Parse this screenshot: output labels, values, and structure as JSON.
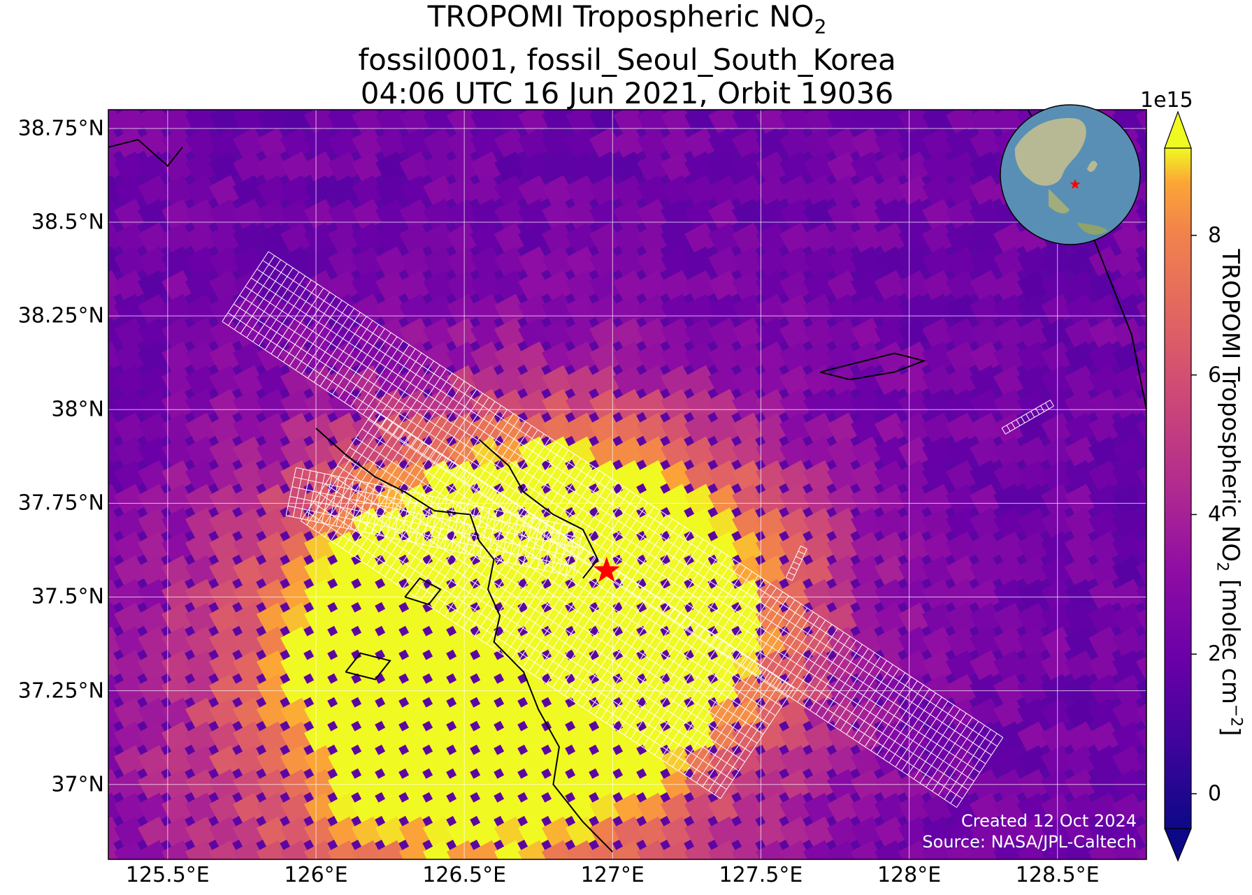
{
  "title": {
    "line1_prefix": "TROPOMI Tropospheric NO",
    "line1_sub": "2",
    "line2": "fossil0001, fossil_Seoul_South_Korea",
    "line3": "04:06 UTC 16 Jun 2021, Orbit 19036"
  },
  "map": {
    "lon_range": [
      125.3,
      128.8
    ],
    "lat_range": [
      36.8,
      38.8
    ],
    "lat_ticks": [
      "38.75°N",
      "38.5°N",
      "38.25°N",
      "38°N",
      "37.75°N",
      "37.5°N",
      "37.25°N",
      "37°N"
    ],
    "lat_tick_values": [
      38.75,
      38.5,
      38.25,
      38.0,
      37.75,
      37.5,
      37.25,
      37.0
    ],
    "lon_ticks": [
      "125.5°E",
      "126°E",
      "126.5°E",
      "127°E",
      "127.5°E",
      "128°E",
      "128.5°E"
    ],
    "lon_tick_values": [
      125.5,
      126.0,
      126.5,
      127.0,
      127.5,
      128.0,
      128.5
    ],
    "target_lon": 126.98,
    "target_lat": 37.57,
    "target_color": "#ff0000",
    "grid_color": "#ffffff",
    "coastline_color": "#000000"
  },
  "colorbar": {
    "exponent": "1e15",
    "label_prefix": "TROPOMI Tropospheric NO",
    "label_sub": "2",
    "label_units": " [molec cm",
    "label_sup": "−2",
    "label_end": "]",
    "range": [
      -0.5,
      9.25
    ],
    "tick_labels": [
      "0",
      "2",
      "4",
      "6",
      "8"
    ],
    "tick_values": [
      0,
      2,
      4,
      6,
      8
    ],
    "colormap": "plasma",
    "extend": "both"
  },
  "credits": {
    "created": "Created 12 Oct 2024",
    "source": "Source: NASA/JPL-Caltech"
  }
}
